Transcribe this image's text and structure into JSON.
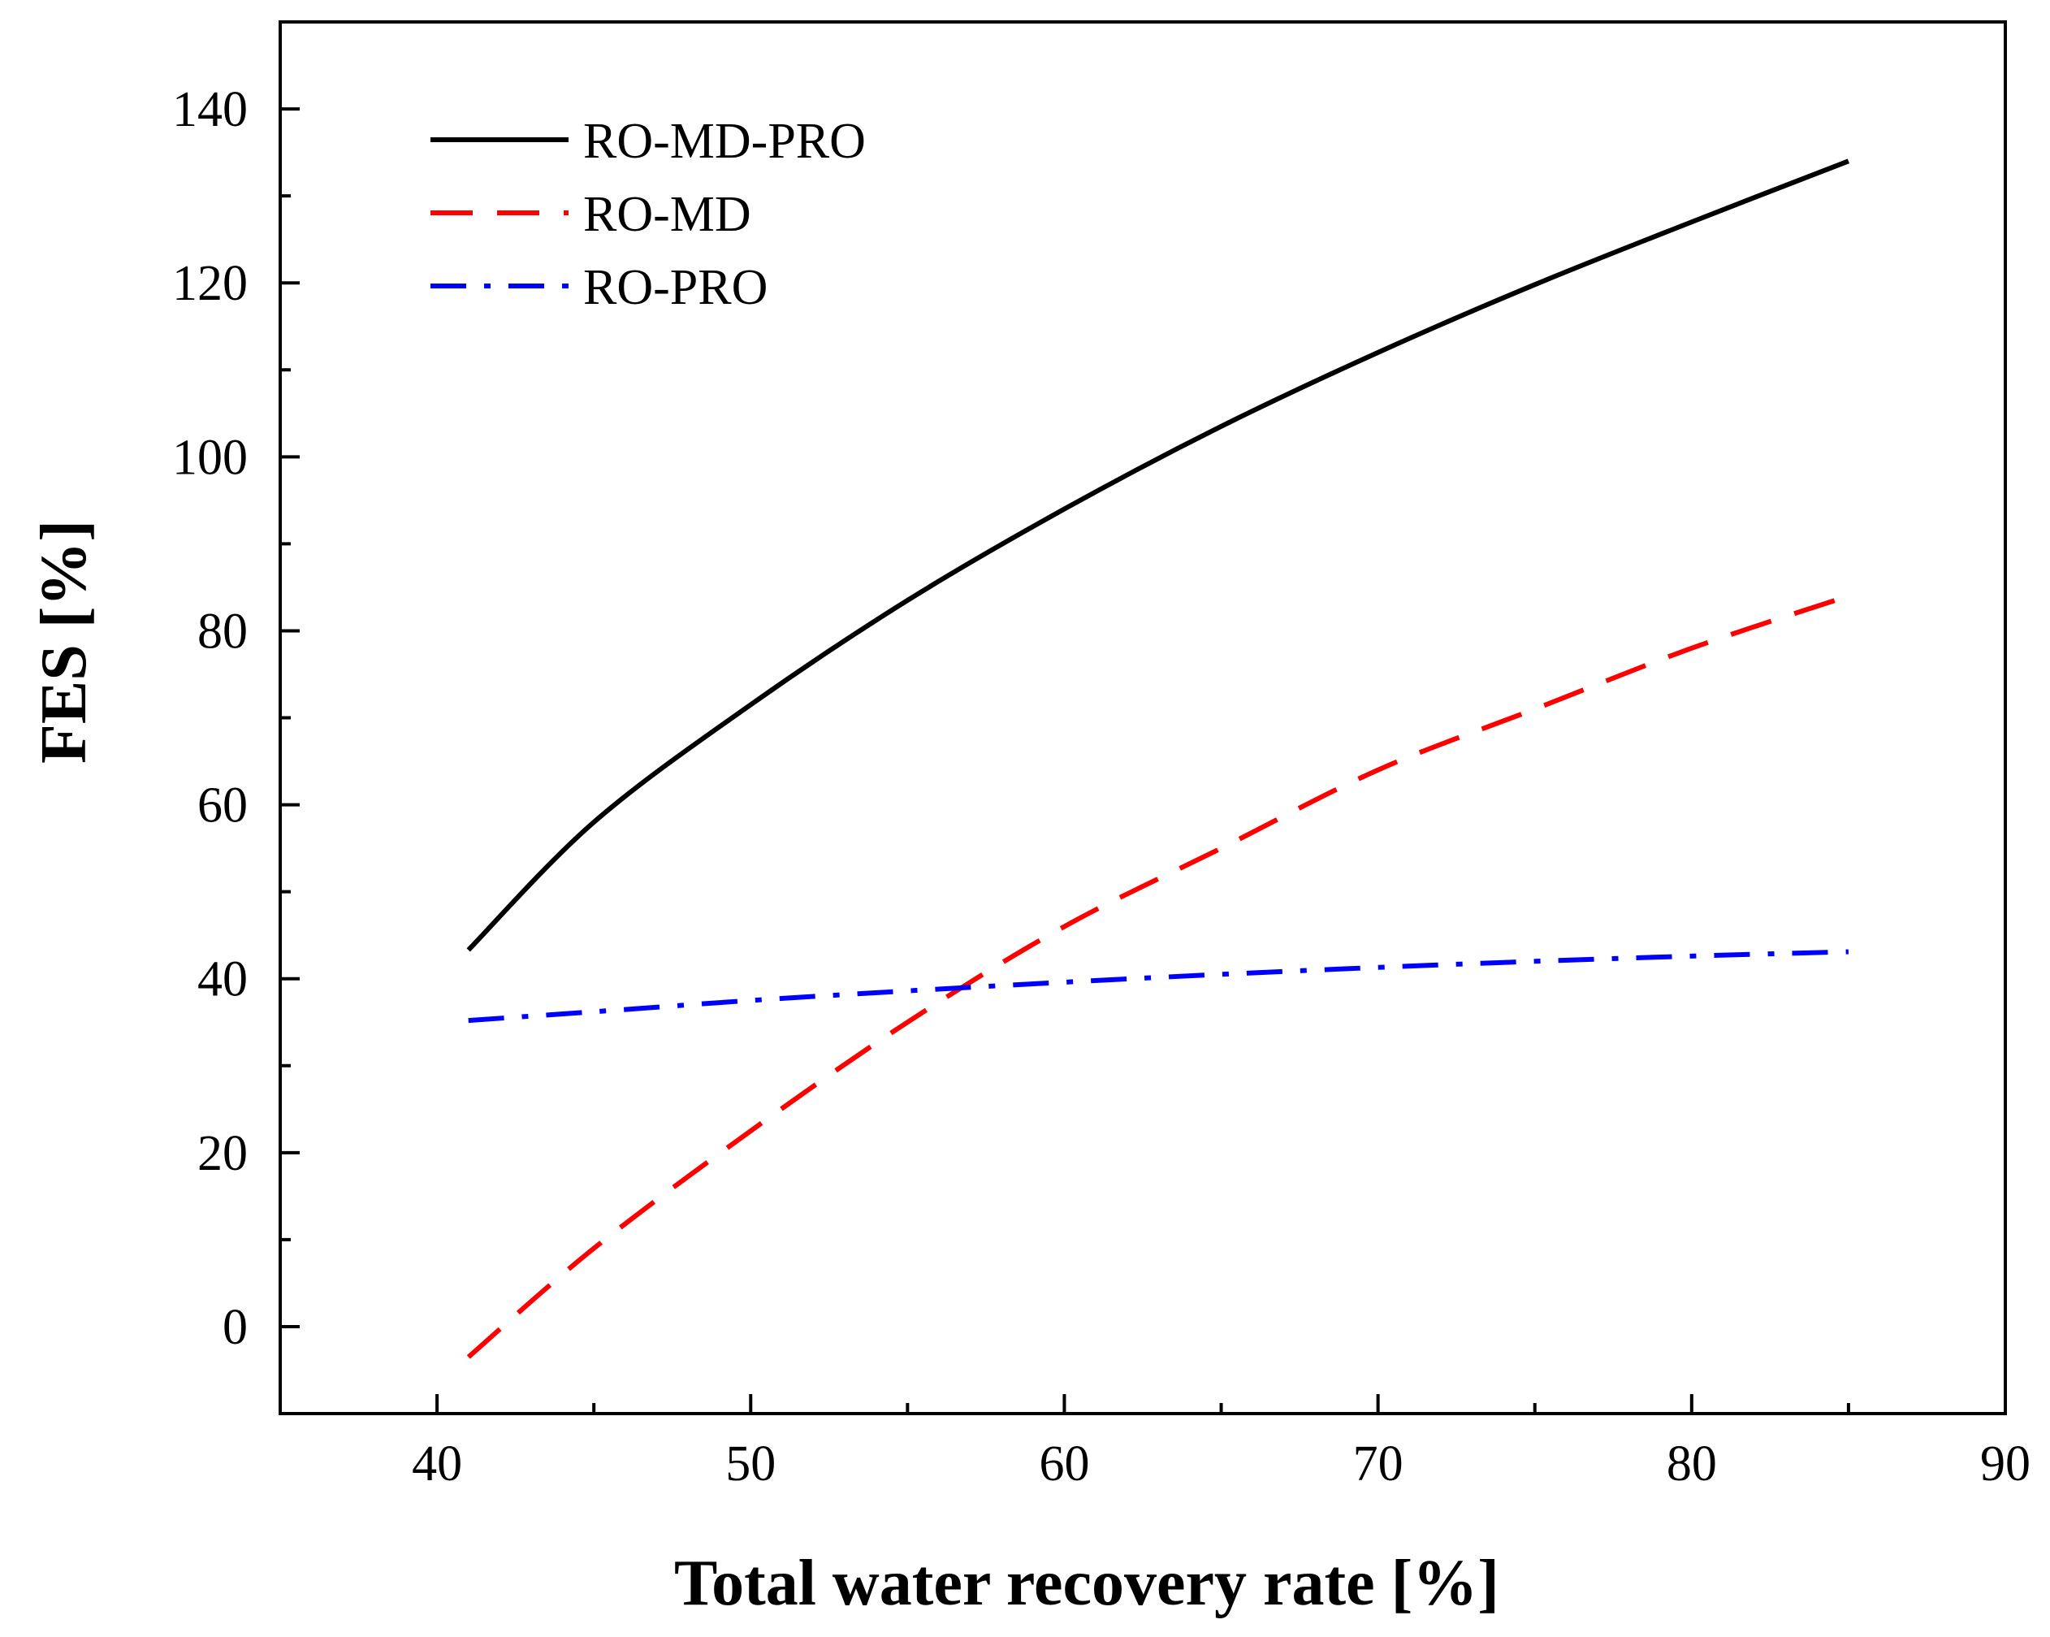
{
  "chart_data": {
    "type": "line",
    "title": "",
    "xlabel": "Total  water recovery rate [%]",
    "ylabel": "FES [%]",
    "xlim": [
      35,
      90
    ],
    "ylim": [
      -10,
      150
    ],
    "x_ticks": [
      40,
      50,
      60,
      70,
      80,
      90
    ],
    "y_ticks": [
      0,
      20,
      40,
      60,
      80,
      100,
      120,
      140
    ],
    "grid": false,
    "legend_position": "top-left",
    "series": [
      {
        "name": "RO-MD-PRO",
        "style": "solid",
        "color": "#000000",
        "x": [
          41,
          45,
          50,
          55,
          60,
          65,
          70,
          75,
          80,
          85
        ],
        "y": [
          43.3,
          58,
          71.5,
          83.5,
          94,
          103.5,
          112,
          119.8,
          127,
          134
        ]
      },
      {
        "name": "RO-MD",
        "style": "dashed",
        "color": "#ff0000",
        "x": [
          41,
          45,
          50,
          55,
          60,
          65,
          70,
          75,
          80,
          85
        ],
        "y": [
          -3.5,
          9,
          22.5,
          35,
          46,
          55,
          64,
          71,
          78,
          84
        ]
      },
      {
        "name": "RO-PRO",
        "style": "dashdot",
        "color": "#0000ff",
        "x": [
          41,
          45,
          50,
          55,
          60,
          65,
          70,
          75,
          80,
          85
        ],
        "y": [
          35.2,
          36.2,
          37.5,
          38.6,
          39.6,
          40.5,
          41.3,
          42,
          42.6,
          43.1
        ]
      }
    ]
  }
}
